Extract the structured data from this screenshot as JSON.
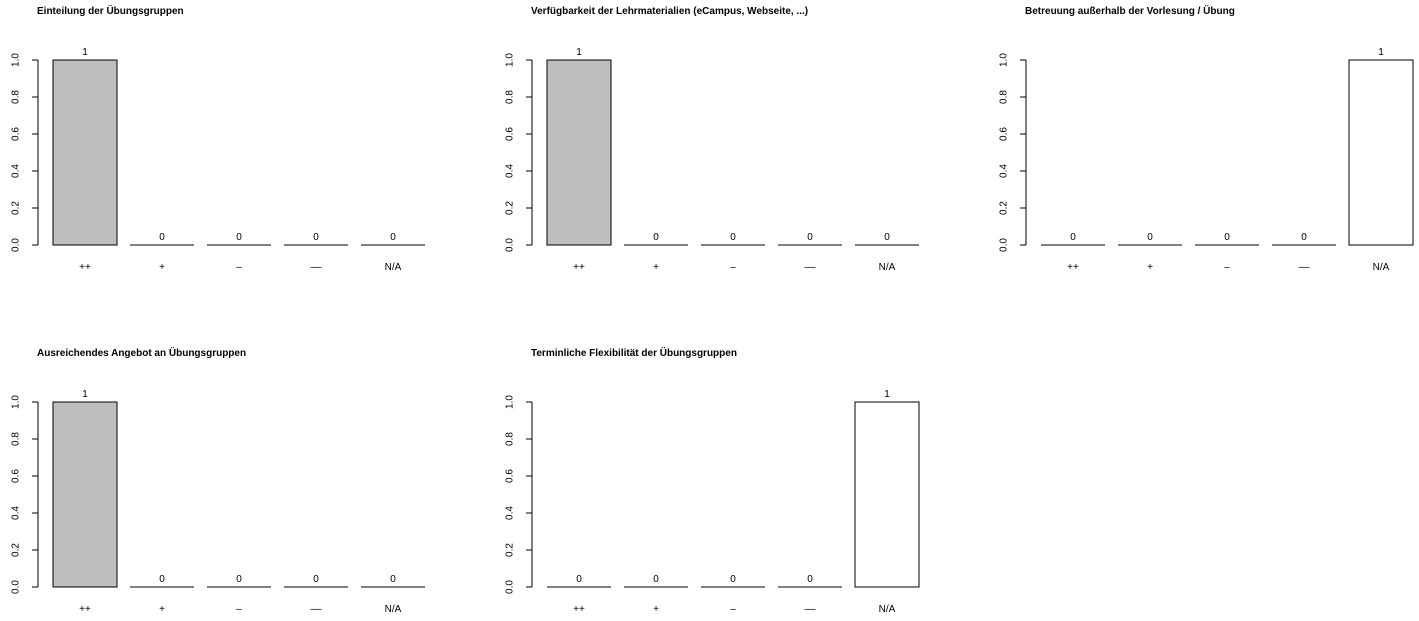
{
  "categories": [
    "++",
    "+",
    "–",
    "––",
    "N/A"
  ],
  "chart_data": [
    {
      "type": "bar",
      "title": "Einteilung der Übungsgruppen",
      "categories": [
        "++",
        "+",
        "–",
        "––",
        "N/A"
      ],
      "values": [
        1,
        0,
        0,
        0,
        0
      ],
      "data_labels": [
        "1",
        "0",
        "0",
        "0",
        "0"
      ],
      "highlight_index": 0,
      "bar_color": "#bebebe",
      "ylim": [
        0,
        1
      ],
      "yticks": [
        "0.0",
        "0.2",
        "0.4",
        "0.6",
        "0.8",
        "1.0"
      ],
      "xlabel": "",
      "ylabel": ""
    },
    {
      "type": "bar",
      "title": "Verfügbarkeit der Lehrmaterialien (eCampus, Webseite, ...)",
      "categories": [
        "++",
        "+",
        "–",
        "––",
        "N/A"
      ],
      "values": [
        1,
        0,
        0,
        0,
        0
      ],
      "data_labels": [
        "1",
        "0",
        "0",
        "0",
        "0"
      ],
      "highlight_index": 0,
      "bar_color": "#bebebe",
      "ylim": [
        0,
        1
      ],
      "yticks": [
        "0.0",
        "0.2",
        "0.4",
        "0.6",
        "0.8",
        "1.0"
      ],
      "xlabel": "",
      "ylabel": ""
    },
    {
      "type": "bar",
      "title": "Betreuung außerhalb der Vorlesung / Übung",
      "categories": [
        "++",
        "+",
        "–",
        "––",
        "N/A"
      ],
      "values": [
        0,
        0,
        0,
        0,
        1
      ],
      "data_labels": [
        "0",
        "0",
        "0",
        "0",
        "1"
      ],
      "highlight_index": -1,
      "bar_color": "#ffffff",
      "ylim": [
        0,
        1
      ],
      "yticks": [
        "0.0",
        "0.2",
        "0.4",
        "0.6",
        "0.8",
        "1.0"
      ],
      "xlabel": "",
      "ylabel": ""
    },
    {
      "type": "bar",
      "title": "Ausreichendes Angebot an Übungsgruppen",
      "categories": [
        "++",
        "+",
        "–",
        "––",
        "N/A"
      ],
      "values": [
        1,
        0,
        0,
        0,
        0
      ],
      "data_labels": [
        "1",
        "0",
        "0",
        "0",
        "0"
      ],
      "highlight_index": 0,
      "bar_color": "#bebebe",
      "ylim": [
        0,
        1
      ],
      "yticks": [
        "0.0",
        "0.2",
        "0.4",
        "0.6",
        "0.8",
        "1.0"
      ],
      "xlabel": "",
      "ylabel": ""
    },
    {
      "type": "bar",
      "title": "Terminliche Flexibilität der Übungsgruppen",
      "categories": [
        "++",
        "+",
        "–",
        "––",
        "N/A"
      ],
      "values": [
        0,
        0,
        0,
        0,
        1
      ],
      "data_labels": [
        "0",
        "0",
        "0",
        "0",
        "1"
      ],
      "highlight_index": -1,
      "bar_color": "#ffffff",
      "ylim": [
        0,
        1
      ],
      "yticks": [
        "0.0",
        "0.2",
        "0.4",
        "0.6",
        "0.8",
        "1.0"
      ],
      "xlabel": "",
      "ylabel": ""
    }
  ]
}
